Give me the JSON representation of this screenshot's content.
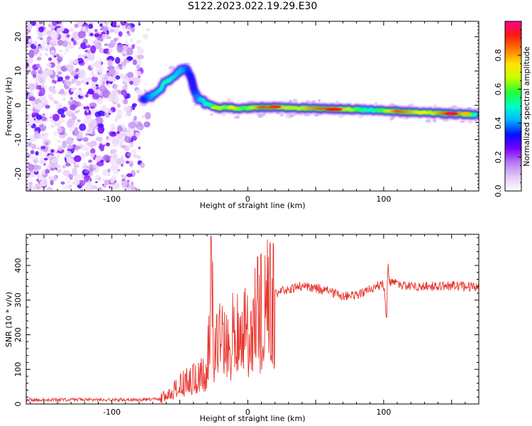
{
  "title": "S122.2023.022.19.29.E30",
  "chart_data": [
    {
      "type": "heatmap",
      "xlabel": "Height of straight line (km)",
      "ylabel": "Frequency (Hz)",
      "xlim": [
        -163,
        170
      ],
      "ylim": [
        -25,
        24.5
      ],
      "xticks": [
        -100,
        0,
        100
      ],
      "yticks": [
        -20,
        -10,
        0,
        10,
        20
      ],
      "grid": false,
      "colorbar": {
        "label": "Normalized spectral amplitude",
        "range": [
          0,
          1
        ],
        "ticks": [
          0.0,
          0.2,
          0.4,
          0.6,
          0.8
        ],
        "tick_labels": [
          "0.0",
          "0.2",
          "0.4",
          "0.6",
          "0.8"
        ],
        "colors": [
          "#ffffff",
          "#e3c9f7",
          "#b77cf0",
          "#7a00ff",
          "#0010ff",
          "#00b2ff",
          "#00ffc8",
          "#25ff30",
          "#c8ff00",
          "#ffe100",
          "#ff7a00",
          "#ff1a10",
          "#ff0090"
        ]
      },
      "ridge": {
        "x": [
          -77,
          -72,
          -67,
          -62,
          -57,
          -52,
          -47,
          -44,
          -42,
          -40,
          -38,
          -35,
          -30,
          -25,
          -20,
          -15,
          -10,
          -5,
          0,
          10,
          20,
          30,
          40,
          50,
          60,
          70,
          80,
          90,
          100,
          110,
          120,
          130,
          140,
          150,
          160,
          168
        ],
        "freq": [
          1.5,
          2.5,
          4.0,
          6.0,
          8.0,
          9.5,
          10.5,
          10.0,
          8.0,
          5.0,
          2.5,
          1.5,
          0.5,
          -0.5,
          -0.8,
          -0.5,
          -0.8,
          -1.0,
          -0.8,
          -0.6,
          -0.6,
          -0.7,
          -0.8,
          -1.0,
          -1.0,
          -1.1,
          -1.2,
          -1.4,
          -1.6,
          -1.8,
          -2.0,
          -2.1,
          -2.3,
          -2.5,
          -2.6,
          -2.8
        ],
        "amplitude": [
          0.3,
          0.4,
          0.45,
          0.5,
          0.5,
          0.45,
          0.4,
          0.35,
          0.3,
          0.3,
          0.35,
          0.45,
          0.5,
          0.55,
          0.7,
          0.6,
          0.75,
          0.6,
          0.6,
          0.9,
          0.85,
          0.7,
          0.75,
          0.85,
          0.9,
          0.8,
          0.6,
          0.5,
          0.6,
          0.9,
          0.8,
          0.65,
          0.8,
          0.95,
          0.75,
          0.5
        ]
      }
    },
    {
      "type": "line",
      "xlabel": "Height of straight line (km)",
      "ylabel": "SNR (10 * v/v)",
      "xlim": [
        -163,
        170
      ],
      "ylim": [
        0,
        490
      ],
      "xticks": [
        -100,
        0,
        100
      ],
      "yticks": [
        0,
        100,
        200,
        300,
        400
      ],
      "color": "#e8362e",
      "grid": false,
      "series": [
        {
          "x": [
            -163,
            -140,
            -120,
            -100,
            -80,
            -65,
            -60,
            -55,
            -50,
            -45,
            -40,
            -35,
            -30,
            -28,
            -27,
            -25,
            -20,
            -15,
            -10,
            -5,
            0,
            5,
            10,
            15,
            20,
            25,
            30,
            40,
            50,
            60,
            65,
            70,
            80,
            90,
            95,
            100,
            102,
            103,
            105,
            107,
            110,
            120,
            130,
            140,
            150,
            160,
            170
          ],
          "values": [
            12,
            12,
            13,
            12,
            12,
            14,
            25,
            40,
            60,
            70,
            75,
            80,
            120,
            250,
            480,
            150,
            210,
            210,
            230,
            200,
            230,
            270,
            290,
            310,
            320,
            325,
            330,
            340,
            335,
            325,
            320,
            310,
            315,
            330,
            340,
            345,
            255,
            380,
            345,
            360,
            345,
            338,
            340,
            340,
            342,
            340,
            335
          ]
        }
      ]
    }
  ]
}
